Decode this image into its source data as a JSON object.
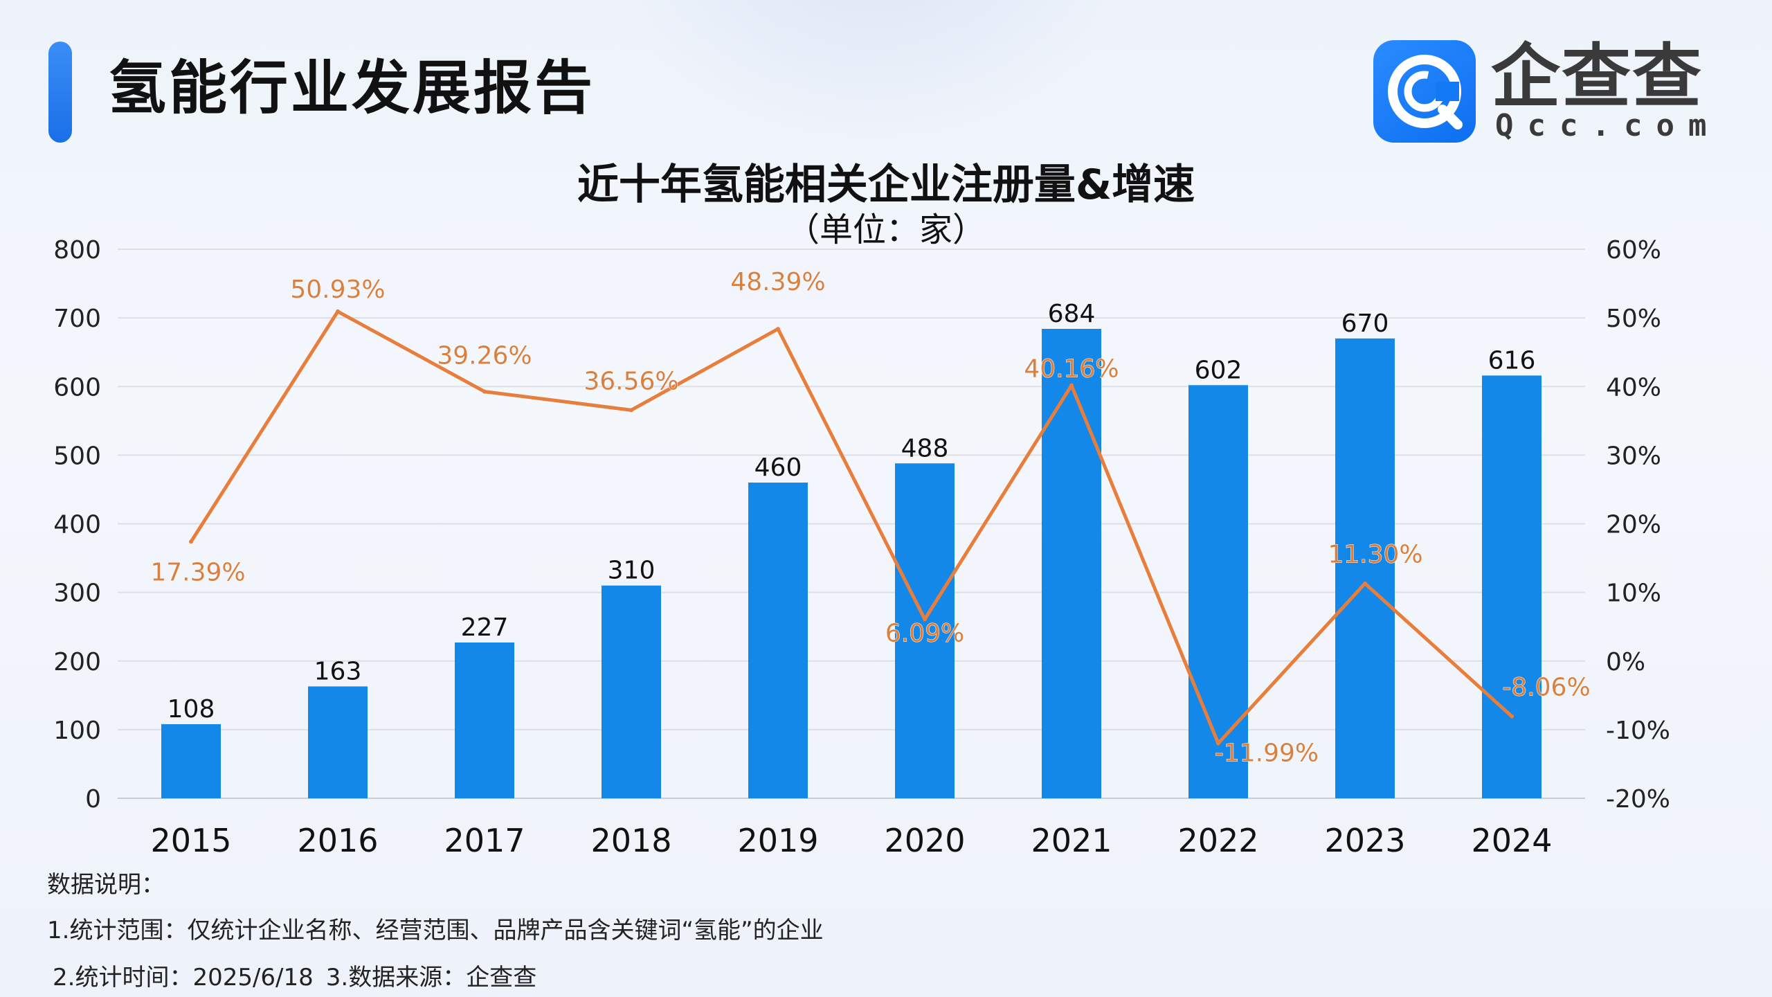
{
  "header": {
    "title": "氢能行业发展报告",
    "logo_text": "企查查",
    "logo_sub": "Qcc.com"
  },
  "colors": {
    "bar": "#1488e8",
    "line": "#e87e3b",
    "line_label": "#d98040",
    "accent": "#1a6fe8"
  },
  "chart_data": {
    "type": "bar+line",
    "title": "近十年氢能相关企业注册量&增速",
    "subtitle": "（单位：家）",
    "categories": [
      "2015",
      "2016",
      "2017",
      "2018",
      "2019",
      "2020",
      "2021",
      "2022",
      "2023",
      "2024"
    ],
    "series": [
      {
        "type": "bar",
        "axis": "left",
        "values": [
          108,
          163,
          227,
          310,
          460,
          488,
          684,
          602,
          670,
          616
        ],
        "labels": [
          "108",
          "163",
          "227",
          "310",
          "460",
          "488",
          "684",
          "602",
          "670",
          "616"
        ]
      },
      {
        "type": "line",
        "axis": "right",
        "values": [
          17.39,
          50.93,
          39.26,
          36.56,
          48.39,
          6.09,
          40.16,
          -11.99,
          11.3,
          -8.06
        ],
        "labels": [
          "17.39%",
          "50.93%",
          "39.26%",
          "36.56%",
          "48.39%",
          "6.09%",
          "40.16%",
          "-11.99%",
          "11.30%",
          "-8.06%"
        ]
      }
    ],
    "y_left": {
      "ylim": [
        0,
        800
      ],
      "ticks": [
        "0",
        "100",
        "200",
        "300",
        "400",
        "500",
        "600",
        "700",
        "800"
      ]
    },
    "y_right": {
      "ylim": [
        -20,
        60
      ],
      "ticks": [
        "-20%",
        "-10%",
        "0%",
        "10%",
        "20%",
        "30%",
        "40%",
        "50%",
        "60%"
      ]
    },
    "grid": true,
    "legend": "none"
  },
  "notes": {
    "heading": "数据说明：",
    "scope": "1.统计范围：仅统计企业名称、经营范围、品牌产品含关键词“氢能”的企业",
    "time": "2.统计时间：2025/6/18",
    "source": "3.数据来源：企查查"
  }
}
